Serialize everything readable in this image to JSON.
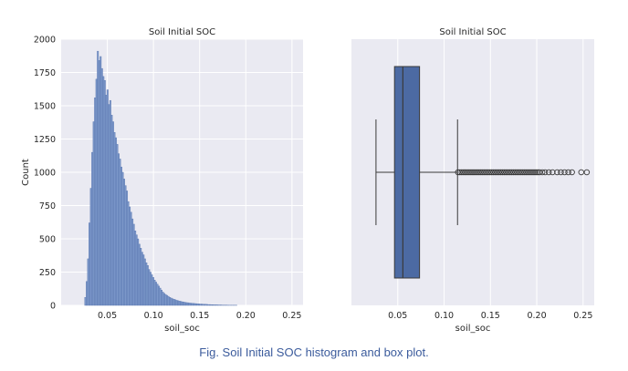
{
  "colors": {
    "panel_bg": "#eaeaf2",
    "grid": "#ffffff",
    "hist_fill": "#7b97c9",
    "hist_stroke": "#5a77b0",
    "box_fill": "#4c6aa3",
    "box_stroke": "#3a3a3a",
    "text": "#262626",
    "caption": "#3b5b9c"
  },
  "caption": "Fig. Soil Initial SOC histogram and box plot.",
  "chart_data": [
    {
      "type": "histogram",
      "title": "Soil Initial SOC",
      "xlabel": "soil_soc",
      "ylabel": "Count",
      "xlim": [
        0.0,
        0.262
      ],
      "ylim": [
        0,
        2000
      ],
      "x_ticks": [
        "0.05",
        "0.10",
        "0.15",
        "0.20",
        "0.25"
      ],
      "y_ticks": [
        "0",
        "250",
        "500",
        "750",
        "1000",
        "1250",
        "1500",
        "1750",
        "2000"
      ],
      "grid": true,
      "bin_width": 0.0015,
      "bins_start": 0.0255,
      "counts": [
        60,
        180,
        350,
        620,
        880,
        1150,
        1380,
        1560,
        1700,
        1910,
        1840,
        1870,
        1780,
        1720,
        1690,
        1580,
        1620,
        1510,
        1540,
        1430,
        1380,
        1300,
        1260,
        1210,
        1140,
        1100,
        1040,
        1000,
        950,
        900,
        860,
        780,
        740,
        700,
        650,
        610,
        560,
        530,
        500,
        460,
        430,
        400,
        380,
        350,
        320,
        300,
        270,
        250,
        230,
        210,
        190,
        175,
        160,
        145,
        130,
        115,
        100,
        90,
        82,
        75,
        68,
        60,
        55,
        50,
        46,
        42,
        38,
        35,
        32,
        30,
        27,
        25,
        23,
        21,
        20,
        18,
        17,
        16,
        15,
        14,
        13,
        12,
        11,
        10,
        10,
        9,
        8,
        8,
        7,
        6,
        6,
        5,
        5,
        4,
        4,
        4,
        3,
        3,
        3,
        2,
        2,
        2,
        2,
        1,
        1,
        1,
        1,
        1,
        1,
        1
      ]
    },
    {
      "type": "box",
      "title": "Soil Initial SOC",
      "xlabel": "soil_soc",
      "xlim": [
        0.0,
        0.262
      ],
      "x_ticks": [
        "0.05",
        "0.10",
        "0.15",
        "0.20",
        "0.25"
      ],
      "grid": true,
      "whisker_low": 0.0265,
      "q1": 0.0465,
      "median": 0.0555,
      "q3": 0.0735,
      "whisker_high": 0.1145,
      "outliers": [
        0.115,
        0.117,
        0.119,
        0.121,
        0.123,
        0.125,
        0.127,
        0.129,
        0.131,
        0.133,
        0.135,
        0.137,
        0.139,
        0.141,
        0.143,
        0.145,
        0.147,
        0.149,
        0.151,
        0.153,
        0.155,
        0.157,
        0.159,
        0.161,
        0.163,
        0.165,
        0.167,
        0.169,
        0.171,
        0.173,
        0.175,
        0.177,
        0.179,
        0.181,
        0.183,
        0.185,
        0.187,
        0.189,
        0.191,
        0.193,
        0.195,
        0.197,
        0.199,
        0.201,
        0.203,
        0.206,
        0.209,
        0.213,
        0.217,
        0.222,
        0.226,
        0.23,
        0.234,
        0.238,
        0.248,
        0.254
      ]
    }
  ]
}
